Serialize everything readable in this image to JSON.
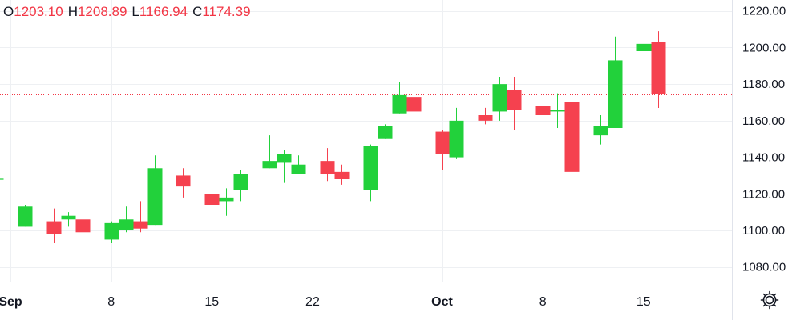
{
  "legend": {
    "open_label": "O",
    "open": "1203.10",
    "high_label": "H",
    "high": "1208.89",
    "low_label": "L",
    "low": "1166.94",
    "close_label": "C",
    "close": "1174.39"
  },
  "settings_icon": "gear-icon",
  "colors": {
    "up": "#22d13b",
    "down": "#f5414f",
    "grid": "#eef0f3",
    "price_line": "#f23645",
    "axis_text": "#131722"
  },
  "chart_data": {
    "type": "candlestick",
    "y_axis_position": "right",
    "ylim": [
      1072,
      1226
    ],
    "yticks": [
      "1080.00",
      "1100.00",
      "1120.00",
      "1140.00",
      "1160.00",
      "1180.00",
      "1200.00",
      "1220.00"
    ],
    "ytick_values": [
      1080,
      1100,
      1120,
      1140,
      1160,
      1180,
      1200,
      1220
    ],
    "x_ticks": [
      {
        "label": "Sep",
        "date": "2023-09-01",
        "bold": true
      },
      {
        "label": "8",
        "date": "2023-09-08",
        "bold": false
      },
      {
        "label": "15",
        "date": "2023-09-15",
        "bold": false
      },
      {
        "label": "22",
        "date": "2023-09-22",
        "bold": false
      },
      {
        "label": "Oct",
        "date": "2023-10-01",
        "bold": true
      },
      {
        "label": "8",
        "date": "2023-10-08",
        "bold": false
      },
      {
        "label": "15",
        "date": "2023-10-15",
        "bold": false
      }
    ],
    "last_close": 1174.39,
    "candles": [
      {
        "date": "2023-08-31",
        "open": 1128.0,
        "high": 1128.0,
        "low": 1128.0,
        "close": 1128.0
      },
      {
        "date": "2023-09-02",
        "open": 1102.0,
        "high": 1114.0,
        "low": 1102.0,
        "close": 1113.0
      },
      {
        "date": "2023-09-04",
        "open": 1105.0,
        "high": 1112.0,
        "low": 1093.0,
        "close": 1098.0
      },
      {
        "date": "2023-09-05",
        "open": 1106.0,
        "high": 1110.0,
        "low": 1102.0,
        "close": 1108.0
      },
      {
        "date": "2023-09-06",
        "open": 1106.0,
        "high": 1107.0,
        "low": 1088.0,
        "close": 1099.0
      },
      {
        "date": "2023-09-08",
        "open": 1095.0,
        "high": 1105.0,
        "low": 1093.0,
        "close": 1104.0
      },
      {
        "date": "2023-09-09",
        "open": 1100.0,
        "high": 1113.0,
        "low": 1099.0,
        "close": 1106.0
      },
      {
        "date": "2023-09-10",
        "open": 1105.0,
        "high": 1116.0,
        "low": 1099.0,
        "close": 1101.0
      },
      {
        "date": "2023-09-11",
        "open": 1103.0,
        "high": 1141.0,
        "low": 1103.0,
        "close": 1134.0
      },
      {
        "date": "2023-09-13",
        "open": 1130.0,
        "high": 1134.0,
        "low": 1118.0,
        "close": 1124.0
      },
      {
        "date": "2023-09-15",
        "open": 1120.0,
        "high": 1124.0,
        "low": 1110.0,
        "close": 1114.0
      },
      {
        "date": "2023-09-16",
        "open": 1116.0,
        "high": 1123.0,
        "low": 1108.0,
        "close": 1118.0
      },
      {
        "date": "2023-09-17",
        "open": 1122.0,
        "high": 1133.0,
        "low": 1116.0,
        "close": 1131.0
      },
      {
        "date": "2023-09-19",
        "open": 1134.0,
        "high": 1152.0,
        "low": 1134.0,
        "close": 1138.0
      },
      {
        "date": "2023-09-20",
        "open": 1137.0,
        "high": 1144.0,
        "low": 1126.0,
        "close": 1142.0
      },
      {
        "date": "2023-09-21",
        "open": 1131.0,
        "high": 1141.0,
        "low": 1131.0,
        "close": 1136.0
      },
      {
        "date": "2023-09-23",
        "open": 1138.0,
        "high": 1145.0,
        "low": 1127.0,
        "close": 1131.0
      },
      {
        "date": "2023-09-24",
        "open": 1132.0,
        "high": 1136.0,
        "low": 1125.0,
        "close": 1128.0
      },
      {
        "date": "2023-09-26",
        "open": 1122.0,
        "high": 1147.0,
        "low": 1116.0,
        "close": 1146.0
      },
      {
        "date": "2023-09-27",
        "open": 1150.0,
        "high": 1158.0,
        "low": 1150.0,
        "close": 1157.0
      },
      {
        "date": "2023-09-28",
        "open": 1164.0,
        "high": 1181.0,
        "low": 1164.0,
        "close": 1174.0
      },
      {
        "date": "2023-09-29",
        "open": 1173.0,
        "high": 1182.0,
        "low": 1154.0,
        "close": 1165.0
      },
      {
        "date": "2023-10-01",
        "open": 1154.0,
        "high": 1155.0,
        "low": 1133.0,
        "close": 1142.0
      },
      {
        "date": "2023-10-02",
        "open": 1140.0,
        "high": 1167.0,
        "low": 1139.0,
        "close": 1160.0
      },
      {
        "date": "2023-10-04",
        "open": 1163.0,
        "high": 1167.0,
        "low": 1158.0,
        "close": 1160.0
      },
      {
        "date": "2023-10-05",
        "open": 1165.0,
        "high": 1184.0,
        "low": 1160.0,
        "close": 1180.0
      },
      {
        "date": "2023-10-06",
        "open": 1177.0,
        "high": 1184.0,
        "low": 1155.0,
        "close": 1166.0
      },
      {
        "date": "2023-10-08",
        "open": 1168.0,
        "high": 1176.0,
        "low": 1156.0,
        "close": 1163.0
      },
      {
        "date": "2023-10-09",
        "open": 1165.0,
        "high": 1175.0,
        "low": 1156.0,
        "close": 1166.0
      },
      {
        "date": "2023-10-10",
        "open": 1170.0,
        "high": 1180.0,
        "low": 1132.0,
        "close": 1132.0
      },
      {
        "date": "2023-10-12",
        "open": 1152.0,
        "high": 1163.0,
        "low": 1147.0,
        "close": 1157.0
      },
      {
        "date": "2023-10-13",
        "open": 1156.0,
        "high": 1206.0,
        "low": 1156.0,
        "close": 1193.0
      },
      {
        "date": "2023-10-15",
        "open": 1198.0,
        "high": 1219.0,
        "low": 1178.0,
        "close": 1202.0
      },
      {
        "date": "2023-10-16",
        "open": 1203.1,
        "high": 1208.89,
        "low": 1166.94,
        "close": 1174.39
      }
    ]
  }
}
